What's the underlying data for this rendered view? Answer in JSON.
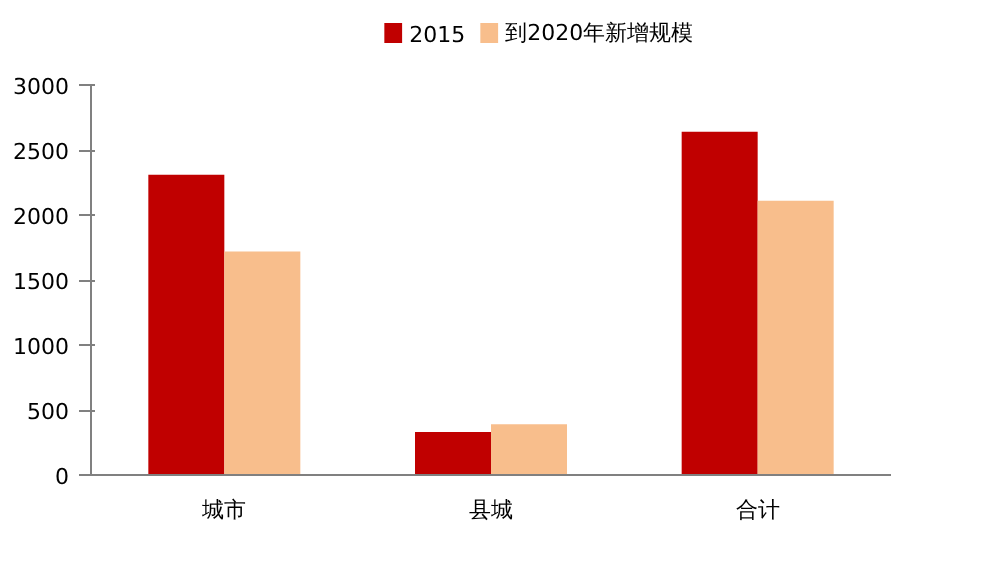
{
  "chart_data": {
    "type": "bar",
    "categories": [
      "城市",
      "县城",
      "合计"
    ],
    "series": [
      {
        "name": "2015",
        "color": "#c00000",
        "values": [
          2310,
          330,
          2640
        ]
      },
      {
        "name": "到2020年新增规模",
        "color": "#f8be8c",
        "values": [
          1720,
          390,
          2110
        ]
      }
    ],
    "ylim": [
      0,
      3000
    ],
    "yticks": [
      0,
      500,
      1000,
      1500,
      2000,
      2500,
      3000
    ],
    "grid": false,
    "legend": "top"
  }
}
